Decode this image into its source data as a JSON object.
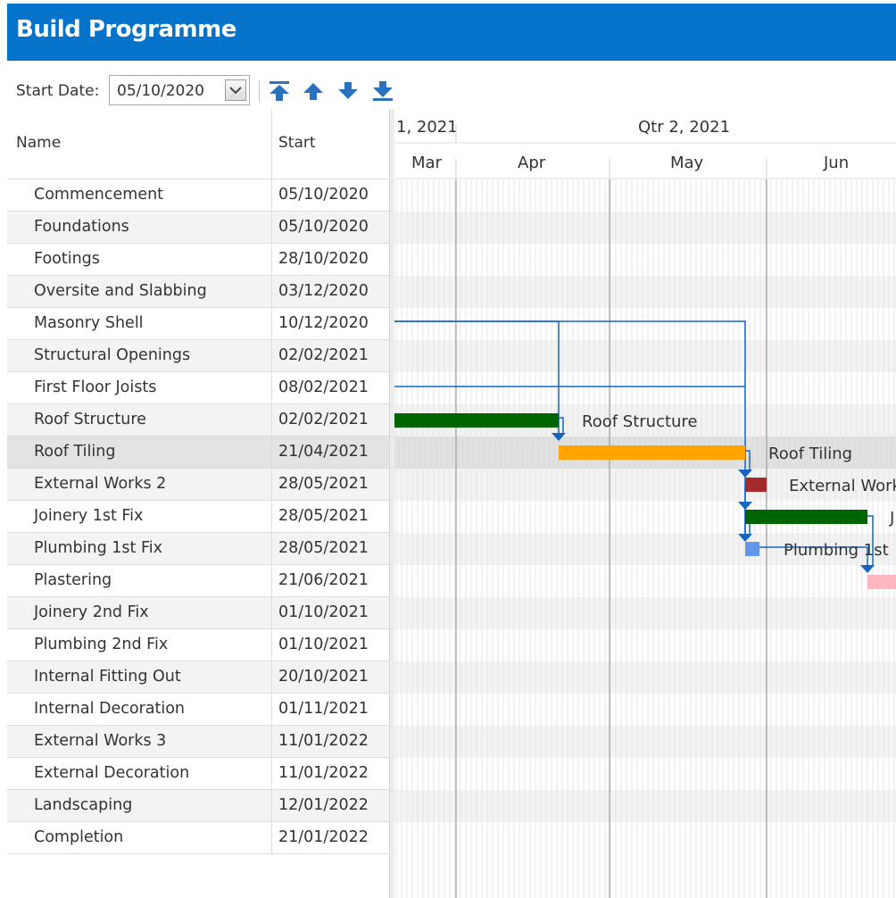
{
  "window": {
    "title": "Build Programme"
  },
  "toolbar": {
    "start_date_label": "Start Date:",
    "start_date_value": "05/10/2020",
    "buttons": [
      "move-to-top",
      "move-up",
      "move-down",
      "move-to-bottom"
    ]
  },
  "grid": {
    "columns": {
      "name": "Name",
      "start": "Start"
    },
    "selected_row": 8,
    "rows": [
      {
        "name": "Commencement",
        "start": "05/10/2020"
      },
      {
        "name": "Foundations",
        "start": "05/10/2020"
      },
      {
        "name": "Footings",
        "start": "28/10/2020"
      },
      {
        "name": "Oversite and Slabbing",
        "start": "03/12/2020"
      },
      {
        "name": "Masonry Shell",
        "start": "10/12/2020"
      },
      {
        "name": "Structural Openings",
        "start": "02/02/2021"
      },
      {
        "name": "First Floor Joists",
        "start": "08/02/2021"
      },
      {
        "name": "Roof Structure",
        "start": "02/02/2021"
      },
      {
        "name": "Roof Tiling",
        "start": "21/04/2021"
      },
      {
        "name": "External Works 2",
        "start": "28/05/2021"
      },
      {
        "name": "Joinery 1st Fix",
        "start": "28/05/2021"
      },
      {
        "name": "Plumbing 1st Fix",
        "start": "28/05/2021"
      },
      {
        "name": "Plastering",
        "start": "21/06/2021"
      },
      {
        "name": "Joinery 2nd Fix",
        "start": "01/10/2021"
      },
      {
        "name": "Plumbing 2nd Fix",
        "start": "01/10/2021"
      },
      {
        "name": "Internal Fitting Out",
        "start": "20/10/2021"
      },
      {
        "name": "Internal Decoration",
        "start": "01/11/2021"
      },
      {
        "name": "External Works 3",
        "start": "11/01/2022"
      },
      {
        "name": "External Decoration",
        "start": "11/01/2022"
      },
      {
        "name": "Landscaping",
        "start": "12/01/2022"
      },
      {
        "name": "Completion",
        "start": "21/01/2022"
      }
    ]
  },
  "timeline": {
    "quarters": [
      "1, 2021",
      "Qtr 2, 2021"
    ],
    "months": [
      "Mar",
      "Apr",
      "May",
      "Jun"
    ]
  },
  "chart_bars": [
    {
      "row": 7,
      "label": "Roof Structure",
      "color": "#006400"
    },
    {
      "row": 8,
      "label": "Roof Tiling",
      "color": "#ffa500"
    },
    {
      "row": 9,
      "label": "External Works",
      "color": "#a52a2a"
    },
    {
      "row": 10,
      "label": "J",
      "color": "#006400"
    },
    {
      "row": 11,
      "label": "Plumbing 1st",
      "color": "#6495ed"
    },
    {
      "row": 12,
      "label": "",
      "color": "#ffb6c1"
    }
  ],
  "colors": {
    "title_bar": "#0473c9",
    "link": "#1565c0",
    "toolbar_icon": "#2a72c0"
  }
}
